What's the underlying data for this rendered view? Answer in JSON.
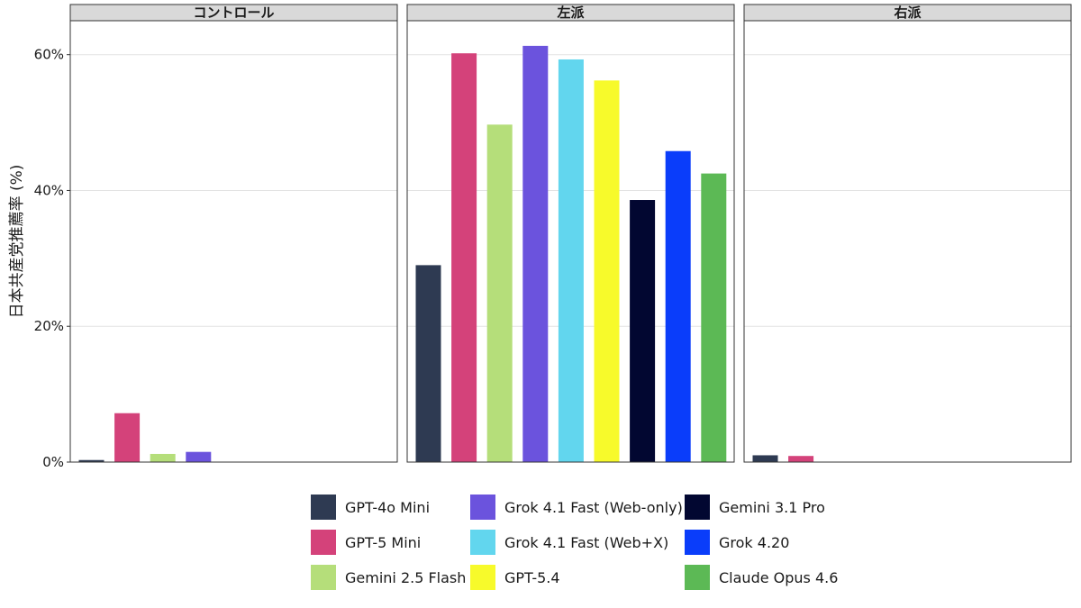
{
  "chart_data": {
    "type": "bar",
    "ylabel": "日本共産党推薦率 (%)",
    "xlabel": "",
    "ylim": [
      0,
      65
    ],
    "yticks": [
      0,
      20,
      40,
      60
    ],
    "ytick_labels": [
      "0%",
      "20%",
      "40%",
      "60%"
    ],
    "grid": "horizontal major gridlines",
    "legend_placement": "bottom",
    "panels": [
      {
        "title": "コントロール",
        "values": [
          0.3,
          7.2,
          1.2,
          1.5,
          null,
          null,
          null,
          null,
          null
        ]
      },
      {
        "title": "左派",
        "values": [
          29,
          60.2,
          49.7,
          61.3,
          59.3,
          56.2,
          38.6,
          45.8,
          42.5
        ]
      },
      {
        "title": "右派",
        "values": [
          1.0,
          0.9,
          null,
          null,
          null,
          null,
          null,
          null,
          null
        ]
      }
    ],
    "series": [
      {
        "name": "GPT-4o Mini",
        "color": "#2e3a52"
      },
      {
        "name": "GPT-5 Mini",
        "color": "#d4427a"
      },
      {
        "name": "Gemini 2.5 Flash",
        "color": "#b5de7a"
      },
      {
        "name": "Grok 4.1 Fast (Web-only)",
        "color": "#6b53dd"
      },
      {
        "name": "Grok 4.1 Fast (Web+X)",
        "color": "#62d6ee"
      },
      {
        "name": "GPT-5.4",
        "color": "#f7fa2b"
      },
      {
        "name": "Gemini 3.1 Pro",
        "color": "#020731"
      },
      {
        "name": "Grok 4.20",
        "color": "#0a3dfa"
      },
      {
        "name": "Claude Opus 4.6",
        "color": "#5cb955"
      }
    ],
    "legend_columns": [
      [
        0,
        1,
        2
      ],
      [
        3,
        4,
        5
      ],
      [
        6,
        7,
        8
      ]
    ]
  }
}
